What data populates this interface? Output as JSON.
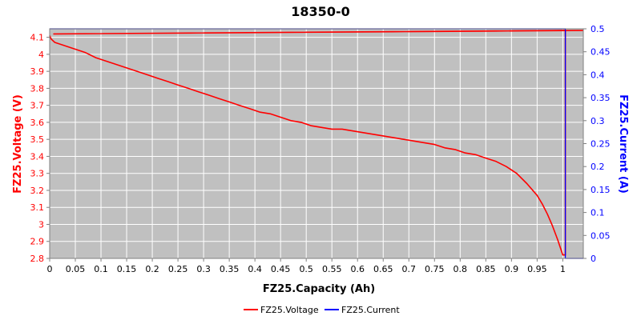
{
  "chart_data": {
    "type": "line",
    "title": "18350-0",
    "xlabel": "FZ25.Capacity (Ah)",
    "ylabel_left": "FZ25.Voltage (V)",
    "ylabel_right": "FZ25.Current (A)",
    "xlim": [
      0,
      1.04
    ],
    "ylim_left": [
      2.8,
      4.15
    ],
    "ylim_right": [
      0,
      0.5
    ],
    "x_ticks": [
      "0",
      "0.05",
      "0.1",
      "0.15",
      "0.2",
      "0.25",
      "0.3",
      "0.35",
      "0.4",
      "0.45",
      "0.5",
      "0.55",
      "0.6",
      "0.65",
      "0.7",
      "0.75",
      "0.8",
      "0.85",
      "0.9",
      "0.95",
      "1"
    ],
    "y_left_ticks": [
      "2.8",
      "2.9",
      "3",
      "3.1",
      "3.2",
      "3.3",
      "3.4",
      "3.5",
      "3.6",
      "3.7",
      "3.8",
      "3.9",
      "4",
      "4.1"
    ],
    "y_right_ticks": [
      "0",
      "0.05",
      "0.1",
      "0.15",
      "0.2",
      "0.25",
      "0.3",
      "0.35",
      "0.4",
      "0.45",
      "0.5"
    ],
    "grid": true,
    "legend_position": "bottom-center",
    "colors": {
      "voltage": "#ff0000",
      "current": "#0000ff",
      "plot_bg": "#c0c0c0",
      "grid": "#ffffff"
    },
    "series": [
      {
        "name": "FZ25.Voltage",
        "axis": "left",
        "x": [
          0,
          0.003,
          0.01,
          0.02,
          0.03,
          0.05,
          0.07,
          0.09,
          0.11,
          0.13,
          0.15,
          0.17,
          0.19,
          0.21,
          0.23,
          0.25,
          0.27,
          0.29,
          0.31,
          0.33,
          0.35,
          0.37,
          0.39,
          0.41,
          0.43,
          0.45,
          0.47,
          0.49,
          0.51,
          0.53,
          0.55,
          0.57,
          0.59,
          0.61,
          0.63,
          0.65,
          0.67,
          0.69,
          0.71,
          0.73,
          0.75,
          0.77,
          0.79,
          0.81,
          0.83,
          0.85,
          0.87,
          0.89,
          0.91,
          0.93,
          0.95,
          0.96,
          0.97,
          0.98,
          0.99,
          1.0,
          1.005,
          1.005,
          0.008,
          1.04
        ],
        "y": [
          4.11,
          4.09,
          4.07,
          4.06,
          4.05,
          4.03,
          4.01,
          3.98,
          3.96,
          3.94,
          3.92,
          3.9,
          3.88,
          3.86,
          3.84,
          3.82,
          3.8,
          3.78,
          3.76,
          3.74,
          3.72,
          3.7,
          3.68,
          3.66,
          3.65,
          3.63,
          3.61,
          3.6,
          3.58,
          3.57,
          3.56,
          3.56,
          3.55,
          3.54,
          3.53,
          3.52,
          3.51,
          3.5,
          3.49,
          3.48,
          3.47,
          3.45,
          3.44,
          3.42,
          3.41,
          3.39,
          3.37,
          3.34,
          3.3,
          3.24,
          3.17,
          3.12,
          3.06,
          2.99,
          2.91,
          2.82,
          2.82,
          4.14,
          4.12,
          4.14
        ]
      },
      {
        "name": "FZ25.Current",
        "axis": "right",
        "x": [
          0,
          1.005,
          1.005,
          1.04
        ],
        "y": [
          0.5,
          0.5,
          0,
          0
        ]
      }
    ]
  }
}
